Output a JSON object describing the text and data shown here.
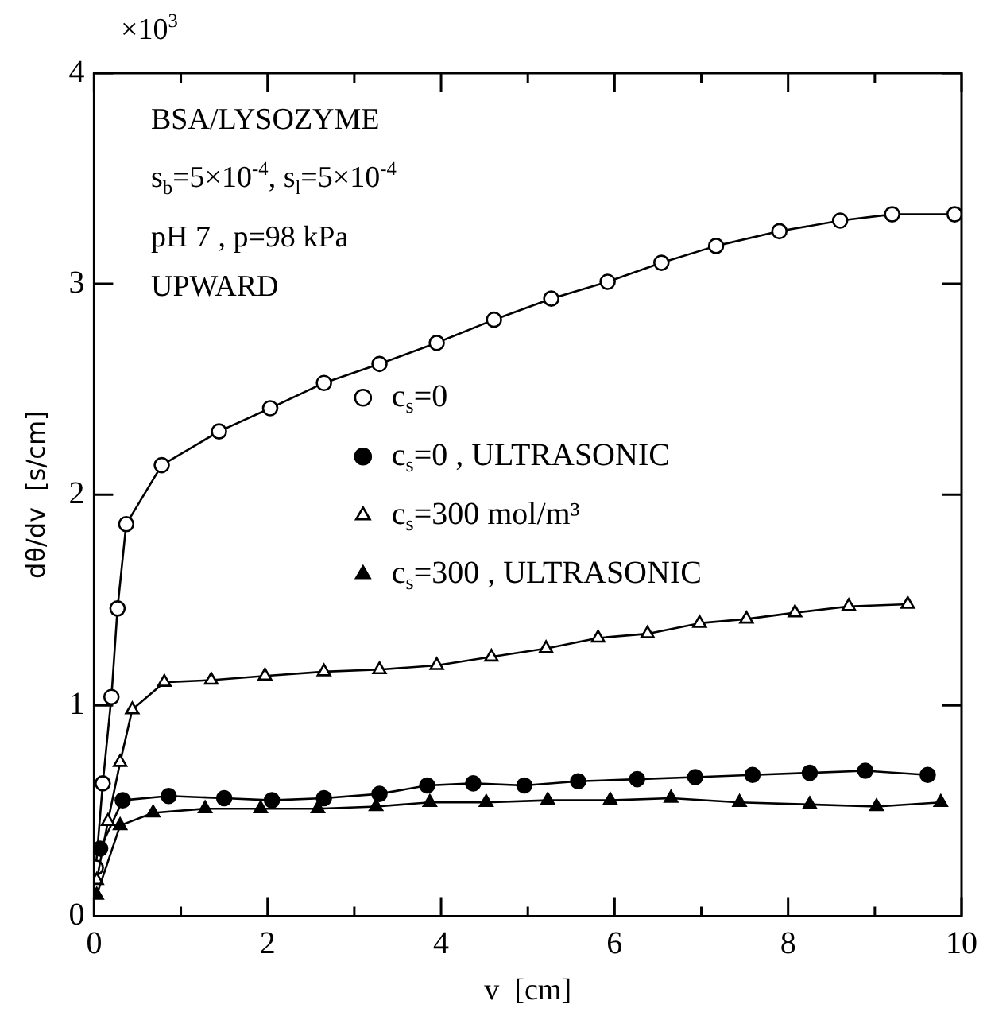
{
  "chart_data": {
    "type": "line",
    "xlabel": "v  [cm]",
    "ylabel": "dθ/dv  [s/cm]",
    "annotations": [
      "×10$^{3}$",
      "BSA/LYSOZYME",
      "s$_{b}$=5×10$^{-4}$, s$_{l}$=5×10$^{-4}$",
      "pH 7 , p=98 kPa",
      "UPWARD"
    ],
    "xlim": [
      0,
      10
    ],
    "xticks": [
      0,
      {
        "value": 1,
        "label": null
      },
      2,
      {
        "value": 3,
        "label": null
      },
      4,
      {
        "value": 5,
        "label": null
      },
      6,
      {
        "value": 7,
        "label": null
      },
      8,
      {
        "value": 9,
        "label": null
      },
      10
    ],
    "ylim": [
      0,
      4
    ],
    "yticks": [
      0,
      1,
      2,
      3,
      4
    ],
    "grid": false,
    "legend": "top",
    "line_style": "solid",
    "series": [
      {
        "name": "c$_{s}$=0",
        "color": "#ffffff",
        "marker": "circle",
        "x": [
          0.02,
          0.1,
          0.2,
          0.27,
          0.37,
          0.78,
          1.44,
          2.03,
          2.65,
          3.29,
          3.95,
          4.61,
          5.27,
          5.92,
          6.54,
          7.17,
          7.9,
          8.6,
          9.2,
          9.92
        ],
        "values": [
          0.23,
          0.63,
          1.04,
          1.46,
          1.86,
          2.14,
          2.3,
          2.41,
          2.53,
          2.62,
          2.72,
          2.83,
          2.93,
          3.01,
          3.1,
          3.18,
          3.25,
          3.3,
          3.33,
          3.33
        ]
      },
      {
        "name": "c$_{s}$=0 , ULTRASONIC",
        "color": "#000000",
        "marker": "circle",
        "x": [
          0.07,
          0.33,
          0.86,
          1.5,
          2.05,
          2.65,
          3.29,
          3.84,
          4.37,
          4.96,
          5.58,
          6.26,
          6.93,
          7.59,
          8.25,
          8.89,
          9.61
        ],
        "values": [
          0.32,
          0.55,
          0.57,
          0.56,
          0.55,
          0.56,
          0.58,
          0.62,
          0.63,
          0.62,
          0.64,
          0.65,
          0.66,
          0.67,
          0.68,
          0.69,
          0.67
        ]
      },
      {
        "name": "c$_{s}$=300 mol/m³",
        "color": "#ffffff",
        "marker": "triangle",
        "x": [
          0.03,
          0.16,
          0.3,
          0.44,
          0.81,
          1.35,
          1.97,
          2.65,
          3.29,
          3.95,
          4.58,
          5.21,
          5.81,
          6.38,
          6.98,
          7.52,
          8.08,
          8.7,
          9.38
        ],
        "values": [
          0.17,
          0.45,
          0.73,
          0.98,
          1.11,
          1.12,
          1.14,
          1.16,
          1.17,
          1.19,
          1.23,
          1.27,
          1.32,
          1.34,
          1.39,
          1.41,
          1.44,
          1.47,
          1.48
        ]
      },
      {
        "name": "c$_{s}$=300 , ULTRASONIC",
        "color": "#000000",
        "marker": "triangle",
        "x": [
          0.03,
          0.3,
          0.68,
          1.28,
          1.92,
          2.58,
          3.25,
          3.87,
          4.52,
          5.23,
          5.95,
          6.65,
          7.44,
          8.25,
          9.02,
          9.76
        ],
        "values": [
          0.1,
          0.43,
          0.49,
          0.51,
          0.51,
          0.51,
          0.52,
          0.54,
          0.54,
          0.55,
          0.55,
          0.56,
          0.54,
          0.53,
          0.52,
          0.54
        ]
      }
    ]
  }
}
